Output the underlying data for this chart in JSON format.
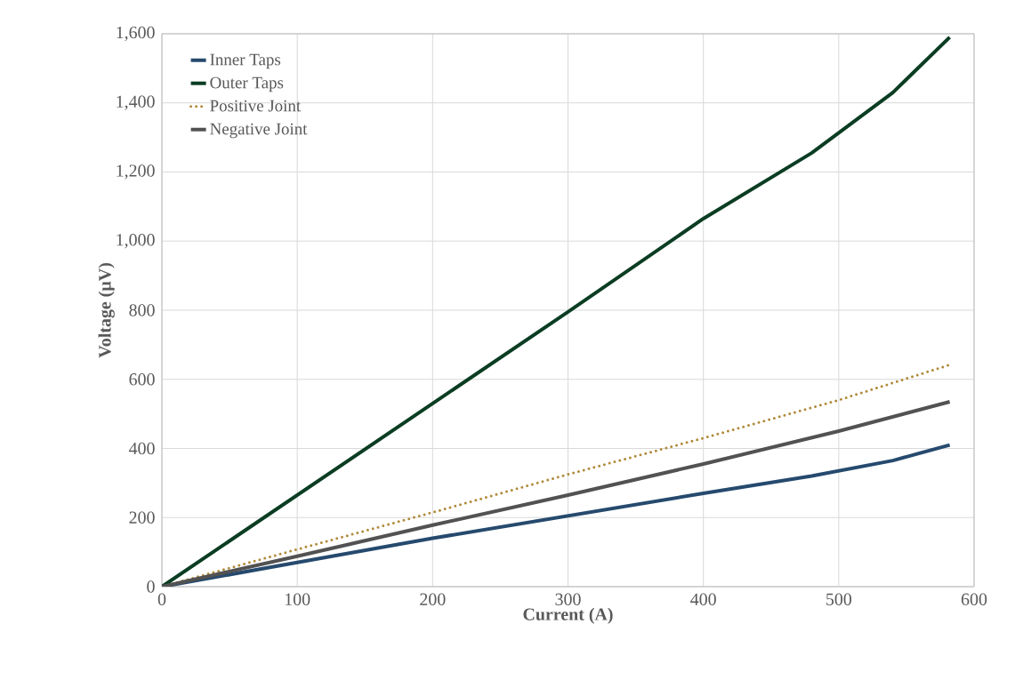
{
  "chart_data": {
    "type": "line",
    "xlabel": "Current (A)",
    "ylabel": "Voltage (µV)",
    "xlim": [
      0,
      600
    ],
    "xticks": [
      0,
      100,
      200,
      300,
      400,
      500,
      600
    ],
    "ylim": [
      0,
      1600
    ],
    "yticks": [
      0,
      200,
      400,
      600,
      800,
      {
        "value": 1000,
        "label": "1,000"
      },
      {
        "value": 1200,
        "label": "1,200"
      },
      {
        "value": 1400,
        "label": "1,400"
      },
      {
        "value": 1600,
        "label": "1,600"
      }
    ],
    "grid": true,
    "legend": "top left",
    "series": [
      {
        "name": "Inner Taps",
        "color": "#264a6e",
        "line_style": "solid",
        "x": [
          0,
          100,
          200,
          300,
          400,
          480,
          540,
          582
        ],
        "values": [
          0,
          70,
          140,
          205,
          270,
          320,
          365,
          410
        ]
      },
      {
        "name": "Outer Taps",
        "color": "#0b3d23",
        "line_style": "solid",
        "x": [
          0,
          100,
          200,
          300,
          400,
          480,
          540,
          582
        ],
        "values": [
          0,
          265,
          530,
          795,
          1065,
          1255,
          1430,
          1590
        ]
      },
      {
        "name": "Positive Joint",
        "color": "#b08a3a",
        "line_style": "dotted",
        "x": [
          0,
          100,
          200,
          300,
          400,
          500,
          582
        ],
        "values": [
          0,
          108,
          215,
          325,
          430,
          540,
          642
        ]
      },
      {
        "name": "Negative Joint",
        "color": "#525252",
        "line_style": "solid",
        "x": [
          0,
          100,
          200,
          300,
          400,
          500,
          582
        ],
        "values": [
          0,
          88,
          178,
          265,
          355,
          450,
          535
        ]
      }
    ]
  }
}
